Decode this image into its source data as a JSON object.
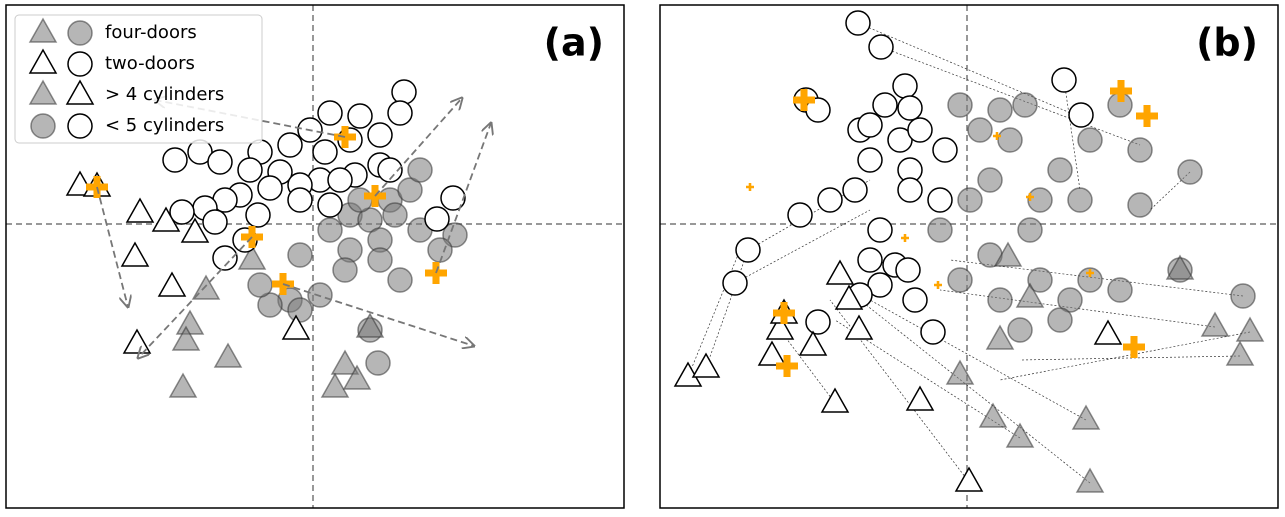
{
  "chart_data": [
    {
      "type": "scatter",
      "title": "(a)",
      "xlim": [
        -307,
        311
      ],
      "ylim": [
        -284,
        219
      ],
      "reference_lines": {
        "x": 0,
        "y": 0
      },
      "legend": [
        {
          "label": "four-doors",
          "markers": [
            "gray-triangle",
            "gray-circle"
          ]
        },
        {
          "label": "two-doors",
          "markers": [
            "white-triangle",
            "white-circle"
          ]
        },
        {
          "label": "> 4 cylinders",
          "markers": [
            "gray-triangle",
            "white-triangle"
          ]
        },
        {
          "label": "< 5 cylinders",
          "markers": [
            "gray-circle",
            "white-circle"
          ]
        }
      ],
      "series": [
        {
          "marker": "gray-circle",
          "x": [
            37,
            57,
            77,
            97,
            67,
            37,
            17,
            107,
            142,
            -13,
            7,
            -23,
            -43,
            -53,
            87,
            67,
            127,
            57,
            65,
            -13,
            47,
            82,
            107,
            32
          ],
          "y": [
            9,
            4,
            24,
            34,
            -16,
            -26,
            -6,
            -6,
            -11,
            -31,
            -71,
            -76,
            -81,
            -61,
            -56,
            -36,
            -26,
            -106,
            -139,
            -86,
            24,
            9,
            54,
            -46
          ]
        },
        {
          "marker": "gray-triangle",
          "x": [
            -107,
            -123,
            -127,
            -85,
            -130,
            32,
            22,
            44,
            -61,
            57
          ],
          "y": [
            -66,
            -101,
            -117,
            -134,
            -164,
            -141,
            -164,
            -156,
            -36,
            -104
          ]
        },
        {
          "marker": "white-circle",
          "x": [
            91,
            87,
            17,
            47,
            -3,
            67,
            37,
            -23,
            12,
            -53,
            -113,
            -138,
            -93,
            -63,
            -33,
            42,
            7,
            -13,
            -43,
            -73,
            -88,
            -108,
            -131,
            -55,
            -98,
            -68,
            -13,
            17,
            67,
            -88,
            140,
            124,
            77,
            27
          ],
          "y": [
            132,
            111,
            111,
            108,
            94,
            89,
            84,
            79,
            72,
            72,
            72,
            64,
            62,
            54,
            52,
            49,
            44,
            39,
            36,
            29,
            24,
            16,
            12,
            9,
            2,
            -16,
            24,
            19,
            59,
            -34,
            26,
            5,
            54,
            44
          ]
        },
        {
          "marker": "white-triangle",
          "x": [
            -233,
            -216,
            -173,
            -147,
            -118,
            -178,
            -141,
            -176,
            -17
          ],
          "y": [
            38,
            37,
            11,
            2,
            -9,
            -33,
            -63,
            -120,
            -106
          ]
        },
        {
          "marker": "orange-plus-large",
          "x": [
            32,
            62,
            -61,
            -30,
            123,
            -216
          ],
          "y": [
            87,
            28,
            -13,
            -60,
            -49,
            37
          ]
        }
      ],
      "arrows": [
        {
          "from": [
            32,
            87
          ],
          "to": [
            -158,
            124
          ]
        },
        {
          "from": [
            62,
            28
          ],
          "to": [
            149,
            126
          ]
        },
        {
          "from": [
            -61,
            -13
          ],
          "to": [
            -175,
            -134
          ]
        },
        {
          "from": [
            -30,
            -60
          ],
          "to": [
            161,
            -122
          ]
        },
        {
          "from": [
            123,
            -49
          ],
          "to": [
            178,
            101
          ]
        },
        {
          "from": [
            -216,
            37
          ],
          "to": [
            -185,
            -83
          ]
        }
      ]
    },
    {
      "type": "scatter",
      "title": "(b)",
      "xlim": [
        -307,
        311
      ],
      "ylim": [
        -284,
        219
      ],
      "reference_lines": {
        "x": 0,
        "y": 0
      },
      "connectors": [
        {
          "from": [
            -109,
            201
          ],
          "to": [
            113,
            107
          ]
        },
        {
          "from": [
            -86,
            177
          ],
          "to": [
            173,
            79
          ]
        },
        {
          "from": [
            -279,
            -153
          ],
          "to": [
            -227,
            -26
          ]
        },
        {
          "from": [
            -261,
            -144
          ],
          "to": [
            -219,
            -26
          ]
        },
        {
          "from": [
            2,
            -258
          ],
          "to": [
            -137,
            -76
          ]
        },
        {
          "from": [
            123,
            -259
          ],
          "to": [
            -107,
            -76
          ]
        },
        {
          "from": [
            248,
            -103
          ],
          "to": [
            -27,
            -66
          ]
        },
        {
          "from": [
            283,
            -108
          ],
          "to": [
            33,
            -156
          ]
        },
        {
          "from": [
            273,
            -132
          ],
          "to": [
            53,
            -136
          ]
        },
        {
          "from": [
            119,
            -196
          ],
          "to": [
            -97,
            -76
          ]
        },
        {
          "from": [
            53,
            -214
          ],
          "to": [
            -132,
            -96
          ]
        },
        {
          "from": [
            -132,
            -179
          ],
          "to": [
            -187,
            -106
          ]
        },
        {
          "from": [
            276,
            -72
          ],
          "to": [
            -17,
            -36
          ]
        },
        {
          "from": [
            223,
            52
          ],
          "to": [
            183,
            14
          ]
        },
        {
          "from": [
            97,
            144
          ],
          "to": [
            113,
            34
          ]
        },
        {
          "from": [
            -219,
            -26
          ],
          "to": [
            -97,
            44
          ]
        },
        {
          "from": [
            -232,
            -59
          ],
          "to": [
            -97,
            14
          ]
        }
      ],
      "series": [
        {
          "marker": "white-circle",
          "x": [
            -109,
            -86,
            -62,
            97,
            114,
            -161,
            -149,
            -82,
            -57,
            -107,
            -97,
            -67,
            -47,
            -22,
            -97,
            -57,
            -27,
            -112,
            -137,
            -167,
            -57,
            -87,
            -97,
            -72,
            -59,
            -87,
            -107,
            -52,
            -34,
            -219,
            -232,
            -149
          ],
          "y": [
            201,
            177,
            138,
            144,
            109,
            124,
            114,
            119,
            116,
            94,
            99,
            84,
            94,
            74,
            64,
            54,
            24,
            34,
            24,
            9,
            34,
            -6,
            -36,
            -41,
            -46,
            -61,
            -71,
            -76,
            -108,
            -26,
            -59,
            -98
          ]
        },
        {
          "marker": "white-triangle",
          "x": [
            -279,
            -261,
            -187,
            -183,
            -195,
            -154,
            -108,
            -132,
            -47,
            2,
            141,
            -127,
            -118
          ],
          "y": [
            -153,
            -144,
            -106,
            -90,
            -132,
            -122,
            -106,
            -179,
            -177,
            -258,
            -111,
            -51,
            -76
          ]
        },
        {
          "marker": "gray-circle",
          "x": [
            -7,
            33,
            58,
            13,
            43,
            23,
            73,
            63,
            93,
            113,
            123,
            153,
            173,
            223,
            173,
            23,
            73,
            103,
            123,
            153,
            213,
            276,
            93,
            53,
            -7,
            -27,
            3,
            33
          ],
          "y": [
            119,
            114,
            119,
            94,
            84,
            44,
            24,
            -6,
            54,
            24,
            84,
            119,
            74,
            52,
            19,
            -31,
            -56,
            -76,
            -56,
            -66,
            -46,
            -72,
            -96,
            -106,
            -56,
            -6,
            24,
            -76
          ]
        },
        {
          "marker": "gray-triangle",
          "x": [
            41,
            -7,
            26,
            53,
            119,
            123,
            248,
            283,
            273,
            213,
            33,
            63
          ],
          "y": [
            -33,
            -151,
            -194,
            -214,
            -196,
            -259,
            -103,
            -108,
            -132,
            -46,
            -116,
            -74
          ]
        },
        {
          "marker": "orange-plus-large",
          "x": [
            -163,
            154,
            180,
            -183,
            -180,
            167
          ],
          "y": [
            124,
            133,
            108,
            -89,
            -142,
            -123
          ]
        },
        {
          "marker": "orange-plus-small",
          "x": [
            -217,
            30,
            63,
            -62,
            -29,
            123
          ],
          "y": [
            37,
            88,
            27,
            -14,
            -61,
            -49
          ]
        }
      ]
    }
  ]
}
